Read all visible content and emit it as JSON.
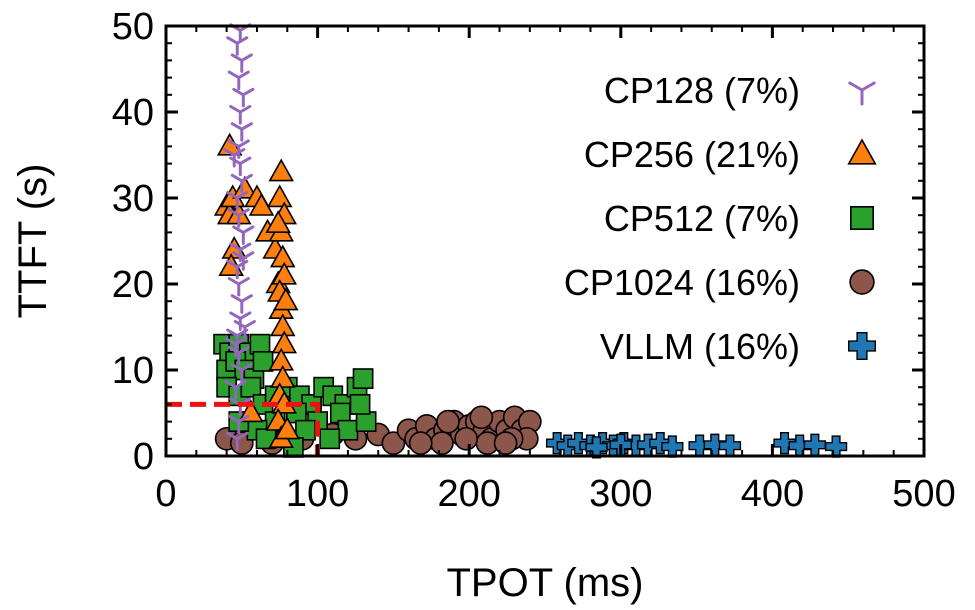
{
  "chart_data": {
    "type": "scatter",
    "title": "",
    "xlabel": "TPOT (ms)",
    "ylabel": "TTFT (s)",
    "xlim": [
      0,
      500
    ],
    "ylim": [
      0,
      50
    ],
    "xticks": [
      0,
      100,
      200,
      300,
      400,
      500
    ],
    "yticks": [
      0,
      10,
      20,
      30,
      40,
      50
    ],
    "xtick_labels": [
      "0",
      "100",
      "200",
      "300",
      "400",
      "500"
    ],
    "ytick_labels": [
      "0",
      "10",
      "20",
      "30",
      "40",
      "50"
    ],
    "grid": false,
    "legend_position": "top-right",
    "slo_box": {
      "x": 100,
      "y": 6,
      "color": "#ee1111",
      "style": "dashed"
    },
    "series": [
      {
        "name": "CP128 (7%)",
        "marker": "tri-down",
        "color": "#9467bd",
        "points": [
          [
            47,
            2
          ],
          [
            48,
            4
          ],
          [
            49,
            6
          ],
          [
            46,
            8
          ],
          [
            50,
            10
          ],
          [
            48,
            12
          ],
          [
            47,
            14
          ],
          [
            49,
            16
          ],
          [
            50,
            18
          ],
          [
            48,
            20
          ],
          [
            47,
            22
          ],
          [
            49,
            24
          ],
          [
            51,
            26
          ],
          [
            48,
            28
          ],
          [
            47,
            30
          ],
          [
            50,
            32
          ],
          [
            49,
            34
          ],
          [
            48,
            36
          ],
          [
            50,
            38
          ],
          [
            49,
            40
          ],
          [
            51,
            42
          ],
          [
            48,
            44
          ],
          [
            50,
            46
          ],
          [
            47,
            48
          ],
          [
            49,
            49.5
          ],
          [
            46,
            13
          ],
          [
            52,
            15
          ],
          [
            45,
            35
          ],
          [
            51,
            23
          ]
        ]
      },
      {
        "name": "CP256 (21%)",
        "marker": "triangle",
        "color": "#ff7f0e",
        "points": [
          [
            42,
            36
          ],
          [
            40,
            29
          ],
          [
            42,
            28
          ],
          [
            45,
            24
          ],
          [
            43,
            22
          ],
          [
            48,
            28
          ],
          [
            44,
            30
          ],
          [
            52,
            31
          ],
          [
            60,
            30
          ],
          [
            63,
            29
          ],
          [
            67,
            26
          ],
          [
            72,
            24
          ],
          [
            74,
            20
          ],
          [
            76,
            33
          ],
          [
            75,
            30
          ],
          [
            78,
            28
          ],
          [
            76,
            26
          ],
          [
            77,
            23
          ],
          [
            78,
            21
          ],
          [
            75,
            19
          ],
          [
            76,
            17
          ],
          [
            77,
            15
          ],
          [
            78,
            13
          ],
          [
            76,
            11
          ],
          [
            77,
            9
          ],
          [
            75,
            7
          ],
          [
            78,
            6
          ],
          [
            74,
            4
          ],
          [
            76,
            2
          ],
          [
            80,
            3
          ],
          [
            56,
            5
          ],
          [
            79,
            18
          ],
          [
            74,
            27
          ]
        ]
      },
      {
        "name": "CP512 (7%)",
        "marker": "square",
        "color": "#2ca02c",
        "points": [
          [
            38,
            13
          ],
          [
            42,
            12
          ],
          [
            48,
            13
          ],
          [
            55,
            12
          ],
          [
            62,
            13
          ],
          [
            40,
            10
          ],
          [
            46,
            11
          ],
          [
            52,
            10
          ],
          [
            58,
            9
          ],
          [
            64,
            11
          ],
          [
            40,
            8
          ],
          [
            48,
            7
          ],
          [
            56,
            8
          ],
          [
            64,
            6
          ],
          [
            72,
            7
          ],
          [
            80,
            8
          ],
          [
            88,
            7
          ],
          [
            96,
            6
          ],
          [
            104,
            8
          ],
          [
            110,
            7
          ],
          [
            118,
            6
          ],
          [
            126,
            8
          ],
          [
            130,
            9
          ],
          [
            115,
            5
          ],
          [
            100,
            4
          ],
          [
            86,
            5
          ],
          [
            72,
            4
          ],
          [
            60,
            3
          ],
          [
            48,
            4
          ],
          [
            66,
            2
          ],
          [
            92,
            3
          ],
          [
            120,
            3
          ],
          [
            132,
            4
          ],
          [
            128,
            6
          ],
          [
            108,
            2
          ],
          [
            84,
            1
          ]
        ]
      },
      {
        "name": "CP1024 (16%)",
        "marker": "circle",
        "color": "#8c564b",
        "points": [
          [
            40,
            2
          ],
          [
            50,
            1.5
          ],
          [
            70,
            1.5
          ],
          [
            90,
            2
          ],
          [
            110,
            2.5
          ],
          [
            125,
            2
          ],
          [
            140,
            2.5
          ],
          [
            150,
            1.5
          ],
          [
            160,
            3
          ],
          [
            165,
            2
          ],
          [
            172,
            3.5
          ],
          [
            178,
            2
          ],
          [
            184,
            3
          ],
          [
            190,
            4
          ],
          [
            195,
            2.5
          ],
          [
            200,
            3.5
          ],
          [
            205,
            4
          ],
          [
            210,
            3
          ],
          [
            215,
            2
          ],
          [
            220,
            4
          ],
          [
            225,
            3
          ],
          [
            230,
            4.5
          ],
          [
            235,
            3
          ],
          [
            240,
            4
          ],
          [
            238,
            2
          ],
          [
            228,
            2
          ],
          [
            212,
            1.5
          ],
          [
            182,
            1.5
          ],
          [
            168,
            1.5
          ],
          [
            198,
            2
          ],
          [
            224,
            1.5
          ],
          [
            186,
            4
          ],
          [
            208,
            4.5
          ]
        ]
      },
      {
        "name": "VLLM (16%)",
        "marker": "plus",
        "color": "#1f77b4",
        "points": [
          [
            258,
            1.5
          ],
          [
            265,
            1.2
          ],
          [
            272,
            1.5
          ],
          [
            280,
            1.2
          ],
          [
            288,
            1.5
          ],
          [
            295,
            1.2
          ],
          [
            302,
            1.5
          ],
          [
            310,
            1.2
          ],
          [
            318,
            1.3
          ],
          [
            326,
            1.5
          ],
          [
            334,
            1.1
          ],
          [
            352,
            1.2
          ],
          [
            362,
            1.3
          ],
          [
            372,
            1.2
          ],
          [
            408,
            1.5
          ],
          [
            418,
            1.2
          ],
          [
            428,
            1.3
          ],
          [
            442,
            1.1
          ],
          [
            300,
            1.3
          ],
          [
            284,
            1.0
          ]
        ]
      }
    ]
  }
}
